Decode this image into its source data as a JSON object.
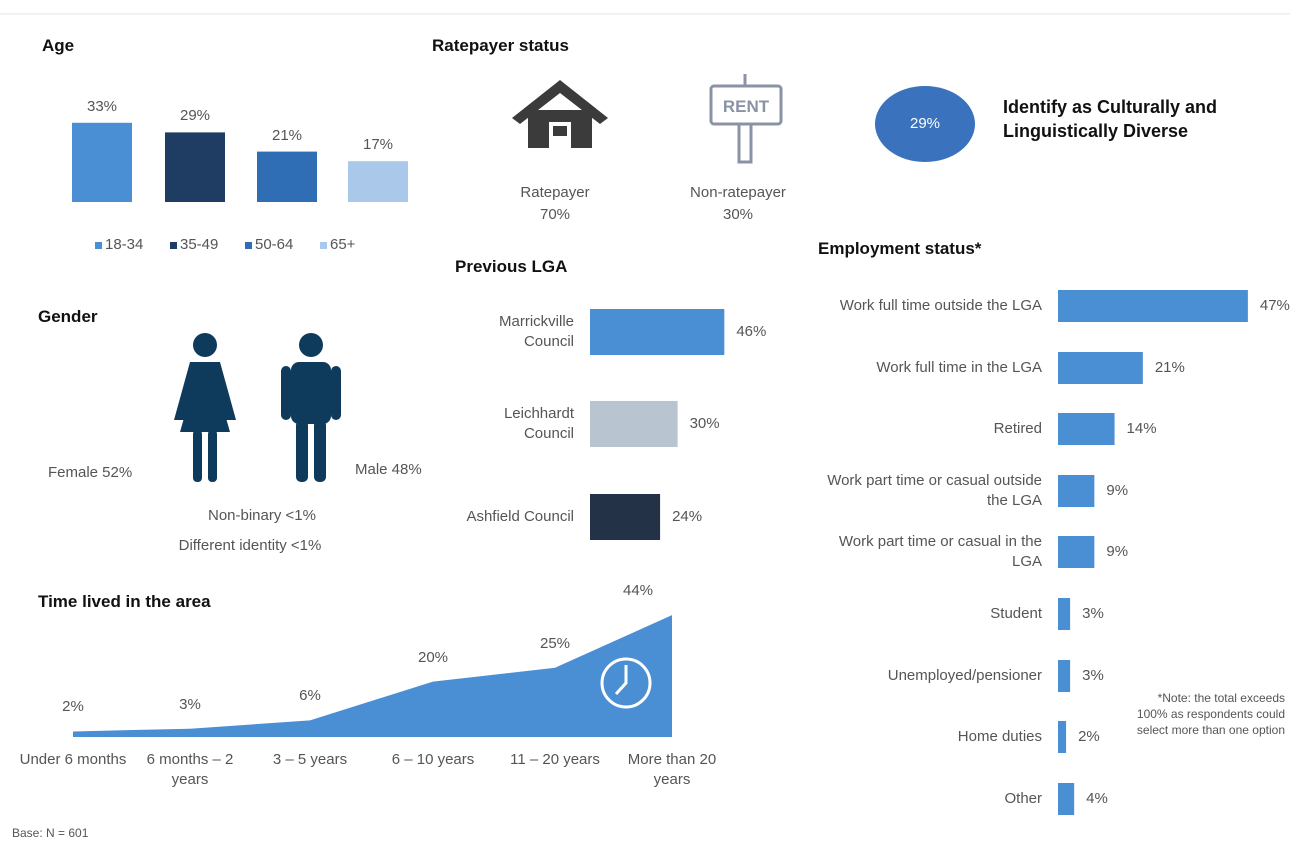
{
  "chart_data": [
    {
      "type": "bar",
      "title": "Age",
      "categories": [
        "18-34",
        "35-49",
        "50-64",
        "65+"
      ],
      "values": [
        33,
        29,
        21,
        17
      ],
      "value_labels": [
        "33%",
        "29%",
        "21%",
        "17%"
      ],
      "colors": [
        "#4a8fd4",
        "#1f3d63",
        "#2f6db5",
        "#a9c8ea"
      ]
    },
    {
      "type": "hbar",
      "title": "Previous LGA",
      "categories": [
        "Marrickville Council",
        "Leichhardt Council",
        "Ashfield Council"
      ],
      "values": [
        46,
        30,
        24
      ],
      "value_labels": [
        "46%",
        "30%",
        "24%"
      ],
      "colors": [
        "#4a8fd4",
        "#b8c4d0",
        "#243247"
      ]
    },
    {
      "type": "hbar",
      "title": "Employment status*",
      "categories": [
        "Work full time outside the LGA",
        "Work full time in the LGA",
        "Retired",
        "Work part time or casual outside the LGA",
        "Work part time or casual in the LGA",
        "Student",
        "Unemployed/pensioner",
        "Home duties",
        "Other"
      ],
      "values": [
        47,
        21,
        14,
        9,
        9,
        3,
        3,
        2,
        4
      ],
      "value_labels": [
        "47%",
        "21%",
        "14%",
        "9%",
        "9%",
        "3%",
        "3%",
        "2%",
        "4%"
      ],
      "color": "#4a8fd4",
      "note": "*Note: the total exceeds 100% as respondents could select more than one option"
    },
    {
      "type": "area",
      "title": "Time lived in the area",
      "categories": [
        "Under 6 months",
        "6 months – 2 years",
        "3 – 5 years",
        "6 – 10 years",
        "11 – 20 years",
        "More than 20 years"
      ],
      "values": [
        2,
        3,
        6,
        20,
        25,
        44
      ],
      "value_labels": [
        "2%",
        "3%",
        "6%",
        "20%",
        "25%",
        "44%"
      ],
      "color": "#4a8fd4"
    }
  ],
  "ratepayer": {
    "title": "Ratepayer status",
    "items": [
      {
        "label": "Ratepayer",
        "value": "70%"
      },
      {
        "label": "Non-ratepayer",
        "value": "30%"
      }
    ],
    "sign": "RENT"
  },
  "cald": {
    "value": "29%",
    "label": "Identify as Culturally and Linguistically Diverse"
  },
  "gender": {
    "title": "Gender",
    "female": "Female 52%",
    "male": "Male 48%",
    "non_binary": "Non-binary <1%",
    "different": "Different identity <1%"
  },
  "base": "Base: N = 601"
}
